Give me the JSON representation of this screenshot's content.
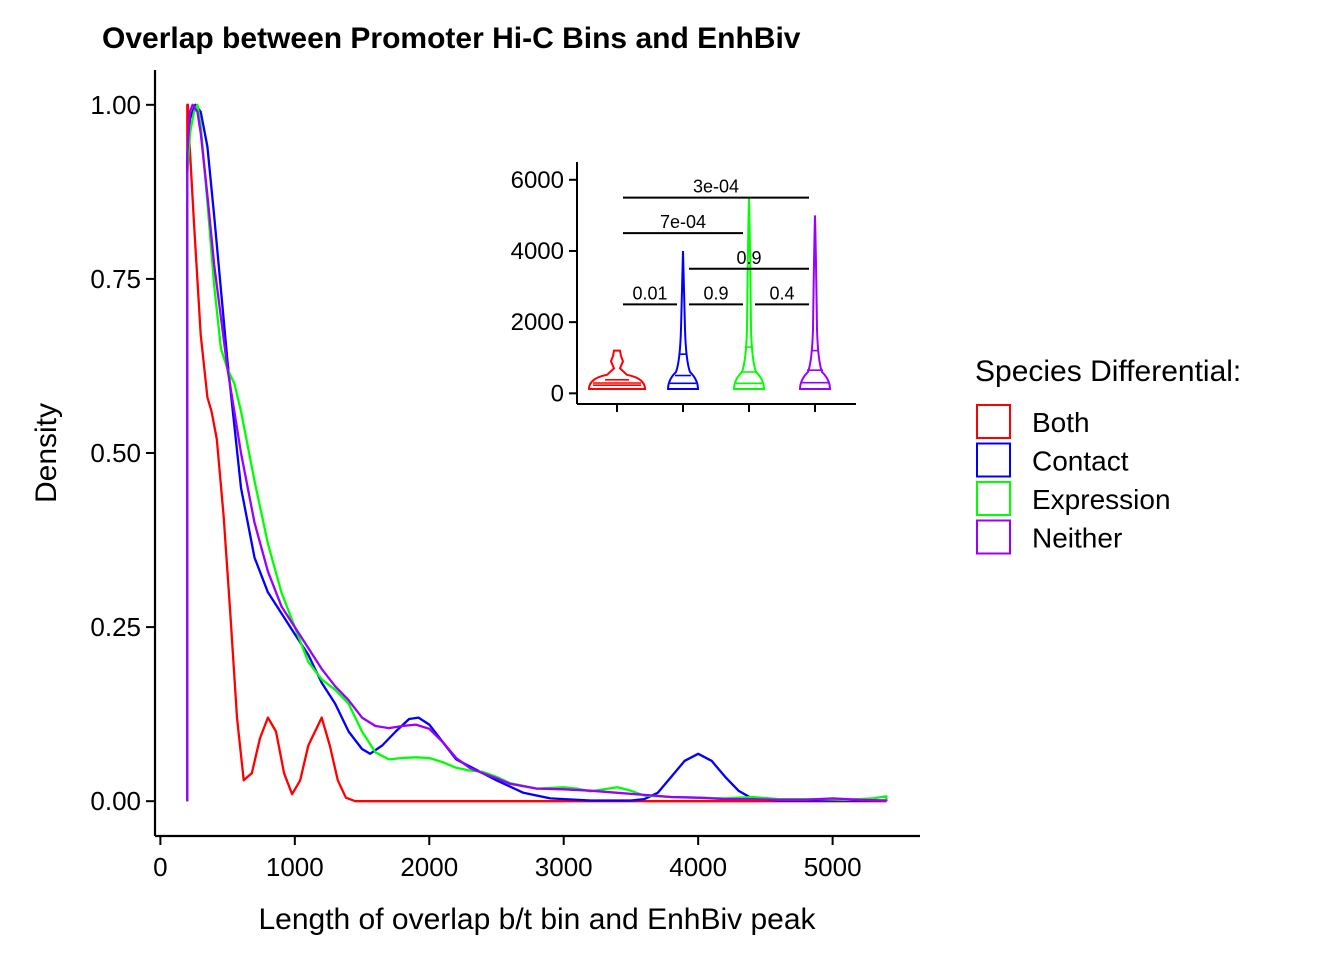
{
  "chart_data": [
    {
      "type": "line",
      "title": "Overlap between Promoter Hi-C Bins and EnhBiv",
      "xlabel": "Length of overlap b/t bin and EnhBiv peak",
      "ylabel": "Density",
      "xlim": [
        -40,
        5650
      ],
      "ylim": [
        -0.05,
        1.05
      ],
      "x_ticks": [
        0,
        1000,
        2000,
        3000,
        4000,
        5000
      ],
      "x_tick_labels": [
        "0",
        "1000",
        "2000",
        "3000",
        "4000",
        "5000"
      ],
      "y_ticks": [
        0,
        0.25,
        0.5,
        0.75,
        1.0
      ],
      "y_tick_labels": [
        "0.00",
        "0.25",
        "0.50",
        "0.75",
        "1.00"
      ],
      "grid": false,
      "series": [
        {
          "name": "Both",
          "color": "#ff0000",
          "points": [
            [
              200,
              0
            ],
            [
              200,
              1.0
            ],
            [
              205,
              1.0
            ],
            [
              215,
              0.95
            ],
            [
              250,
              0.83
            ],
            [
              300,
              0.67
            ],
            [
              350,
              0.58
            ],
            [
              380,
              0.56
            ],
            [
              420,
              0.52
            ],
            [
              470,
              0.41
            ],
            [
              520,
              0.27
            ],
            [
              570,
              0.12
            ],
            [
              620,
              0.03
            ],
            [
              680,
              0.04
            ],
            [
              740,
              0.09
            ],
            [
              800,
              0.12
            ],
            [
              860,
              0.1
            ],
            [
              920,
              0.04
            ],
            [
              980,
              0.01
            ],
            [
              1040,
              0.03
            ],
            [
              1100,
              0.08
            ],
            [
              1200,
              0.12
            ],
            [
              1260,
              0.08
            ],
            [
              1320,
              0.03
            ],
            [
              1380,
              0.005
            ],
            [
              1450,
              0
            ],
            [
              5400,
              0
            ]
          ]
        },
        {
          "name": "Contact",
          "color": "#0000ff",
          "points": [
            [
              200,
              0
            ],
            [
              200,
              0.92
            ],
            [
              220,
              0.98
            ],
            [
              260,
              1.0
            ],
            [
              300,
              0.99
            ],
            [
              350,
              0.94
            ],
            [
              400,
              0.84
            ],
            [
              500,
              0.63
            ],
            [
              600,
              0.45
            ],
            [
              700,
              0.35
            ],
            [
              800,
              0.3
            ],
            [
              900,
              0.27
            ],
            [
              1000,
              0.24
            ],
            [
              1100,
              0.21
            ],
            [
              1200,
              0.17
            ],
            [
              1300,
              0.14
            ],
            [
              1400,
              0.1
            ],
            [
              1500,
              0.075
            ],
            [
              1560,
              0.068
            ],
            [
              1650,
              0.08
            ],
            [
              1750,
              0.1
            ],
            [
              1850,
              0.118
            ],
            [
              1920,
              0.12
            ],
            [
              2000,
              0.11
            ],
            [
              2100,
              0.085
            ],
            [
              2200,
              0.06
            ],
            [
              2350,
              0.045
            ],
            [
              2500,
              0.03
            ],
            [
              2700,
              0.012
            ],
            [
              2900,
              0.004
            ],
            [
              3200,
              0.001
            ],
            [
              3500,
              0.001
            ],
            [
              3600,
              0.003
            ],
            [
              3700,
              0.012
            ],
            [
              3800,
              0.035
            ],
            [
              3900,
              0.058
            ],
            [
              4000,
              0.068
            ],
            [
              4100,
              0.058
            ],
            [
              4200,
              0.035
            ],
            [
              4300,
              0.015
            ],
            [
              4400,
              0.004
            ],
            [
              4600,
              0.001
            ],
            [
              5400,
              0.001
            ]
          ]
        },
        {
          "name": "Expression",
          "color": "#00ff00",
          "points": [
            [
              200,
              0
            ],
            [
              200,
              0.9
            ],
            [
              220,
              0.96
            ],
            [
              250,
              0.99
            ],
            [
              275,
              1.0
            ],
            [
              300,
              0.97
            ],
            [
              350,
              0.86
            ],
            [
              400,
              0.74
            ],
            [
              450,
              0.65
            ],
            [
              500,
              0.62
            ],
            [
              550,
              0.6
            ],
            [
              600,
              0.56
            ],
            [
              700,
              0.46
            ],
            [
              800,
              0.37
            ],
            [
              900,
              0.3
            ],
            [
              1000,
              0.25
            ],
            [
              1100,
              0.2
            ],
            [
              1200,
              0.175
            ],
            [
              1300,
              0.16
            ],
            [
              1400,
              0.14
            ],
            [
              1500,
              0.1
            ],
            [
              1600,
              0.07
            ],
            [
              1700,
              0.06
            ],
            [
              1800,
              0.062
            ],
            [
              1900,
              0.063
            ],
            [
              2000,
              0.062
            ],
            [
              2100,
              0.056
            ],
            [
              2200,
              0.048
            ],
            [
              2300,
              0.044
            ],
            [
              2400,
              0.042
            ],
            [
              2500,
              0.035
            ],
            [
              2600,
              0.026
            ],
            [
              2800,
              0.018
            ],
            [
              3000,
              0.02
            ],
            [
              3100,
              0.018
            ],
            [
              3200,
              0.014
            ],
            [
              3300,
              0.017
            ],
            [
              3400,
              0.02
            ],
            [
              3500,
              0.015
            ],
            [
              3600,
              0.008
            ],
            [
              3800,
              0.006
            ],
            [
              4000,
              0.005
            ],
            [
              4200,
              0.004
            ],
            [
              4400,
              0.006
            ],
            [
              4600,
              0.003
            ],
            [
              4900,
              0.003
            ],
            [
              5100,
              0.002
            ],
            [
              5300,
              0.004
            ],
            [
              5400,
              0.007
            ],
            [
              5400,
              0
            ]
          ]
        },
        {
          "name": "Neither",
          "color": "#9900ff",
          "points": [
            [
              200,
              0
            ],
            [
              200,
              0.93
            ],
            [
              220,
              0.99
            ],
            [
              240,
              1.0
            ],
            [
              275,
              0.99
            ],
            [
              300,
              0.96
            ],
            [
              350,
              0.87
            ],
            [
              400,
              0.77
            ],
            [
              500,
              0.62
            ],
            [
              600,
              0.5
            ],
            [
              700,
              0.4
            ],
            [
              800,
              0.33
            ],
            [
              900,
              0.28
            ],
            [
              1000,
              0.25
            ],
            [
              1100,
              0.22
            ],
            [
              1200,
              0.19
            ],
            [
              1300,
              0.165
            ],
            [
              1400,
              0.145
            ],
            [
              1500,
              0.12
            ],
            [
              1600,
              0.108
            ],
            [
              1700,
              0.105
            ],
            [
              1800,
              0.108
            ],
            [
              1900,
              0.11
            ],
            [
              2000,
              0.104
            ],
            [
              2100,
              0.085
            ],
            [
              2200,
              0.062
            ],
            [
              2300,
              0.048
            ],
            [
              2400,
              0.04
            ],
            [
              2500,
              0.033
            ],
            [
              2600,
              0.025
            ],
            [
              2800,
              0.018
            ],
            [
              3000,
              0.017
            ],
            [
              3200,
              0.015
            ],
            [
              3400,
              0.012
            ],
            [
              3600,
              0.009
            ],
            [
              3800,
              0.006
            ],
            [
              4000,
              0.005
            ],
            [
              4200,
              0.003
            ],
            [
              4400,
              0.003
            ],
            [
              4600,
              0.002
            ],
            [
              4800,
              0.002
            ],
            [
              5000,
              0.004
            ],
            [
              5200,
              0.002
            ],
            [
              5400,
              0.001
            ],
            [
              5400,
              0
            ]
          ]
        }
      ]
    },
    {
      "type": "violin",
      "title": "",
      "xlabel": "",
      "ylabel": "",
      "categories": [
        "Both",
        "Contact",
        "Expression",
        "Neither"
      ],
      "ylim": [
        -300,
        6500
      ],
      "y_ticks": [
        0,
        2000,
        4000,
        6000
      ],
      "y_tick_labels": [
        "0",
        "2000",
        "4000",
        "6000"
      ],
      "series": [
        {
          "name": "Both",
          "color": "#ff0000",
          "max": 1200,
          "quantiles": [
            230,
            290,
            380
          ]
        },
        {
          "name": "Contact",
          "color": "#0000ff",
          "max": 4000,
          "quantiles": [
            280,
            500,
            1100
          ]
        },
        {
          "name": "Expression",
          "color": "#00ff00",
          "max": 5500,
          "quantiles": [
            280,
            600,
            1300
          ]
        },
        {
          "name": "Neither",
          "color": "#9900ff",
          "max": 5000,
          "quantiles": [
            300,
            650,
            1200
          ]
        }
      ],
      "comparisons": [
        {
          "groups": [
            "Both",
            "Contact"
          ],
          "p": "0.01",
          "y": 2500
        },
        {
          "groups": [
            "Contact",
            "Expression"
          ],
          "p": "0.9",
          "y": 2500
        },
        {
          "groups": [
            "Expression",
            "Neither"
          ],
          "p": "0.4",
          "y": 2500
        },
        {
          "groups": [
            "Contact",
            "Neither"
          ],
          "p": "0.9",
          "y": 3500
        },
        {
          "groups": [
            "Both",
            "Expression"
          ],
          "p": "7e-04",
          "y": 4500
        },
        {
          "groups": [
            "Both",
            "Neither"
          ],
          "p": "3e-04",
          "y": 5500
        }
      ]
    }
  ],
  "legend": {
    "title": "Species Differential:",
    "placement": "right",
    "items": [
      {
        "label": "Both",
        "color": "#ff0000"
      },
      {
        "label": "Contact",
        "color": "#0000ff"
      },
      {
        "label": "Expression",
        "color": "#00ff00"
      },
      {
        "label": "Neither",
        "color": "#9900ff"
      }
    ]
  }
}
